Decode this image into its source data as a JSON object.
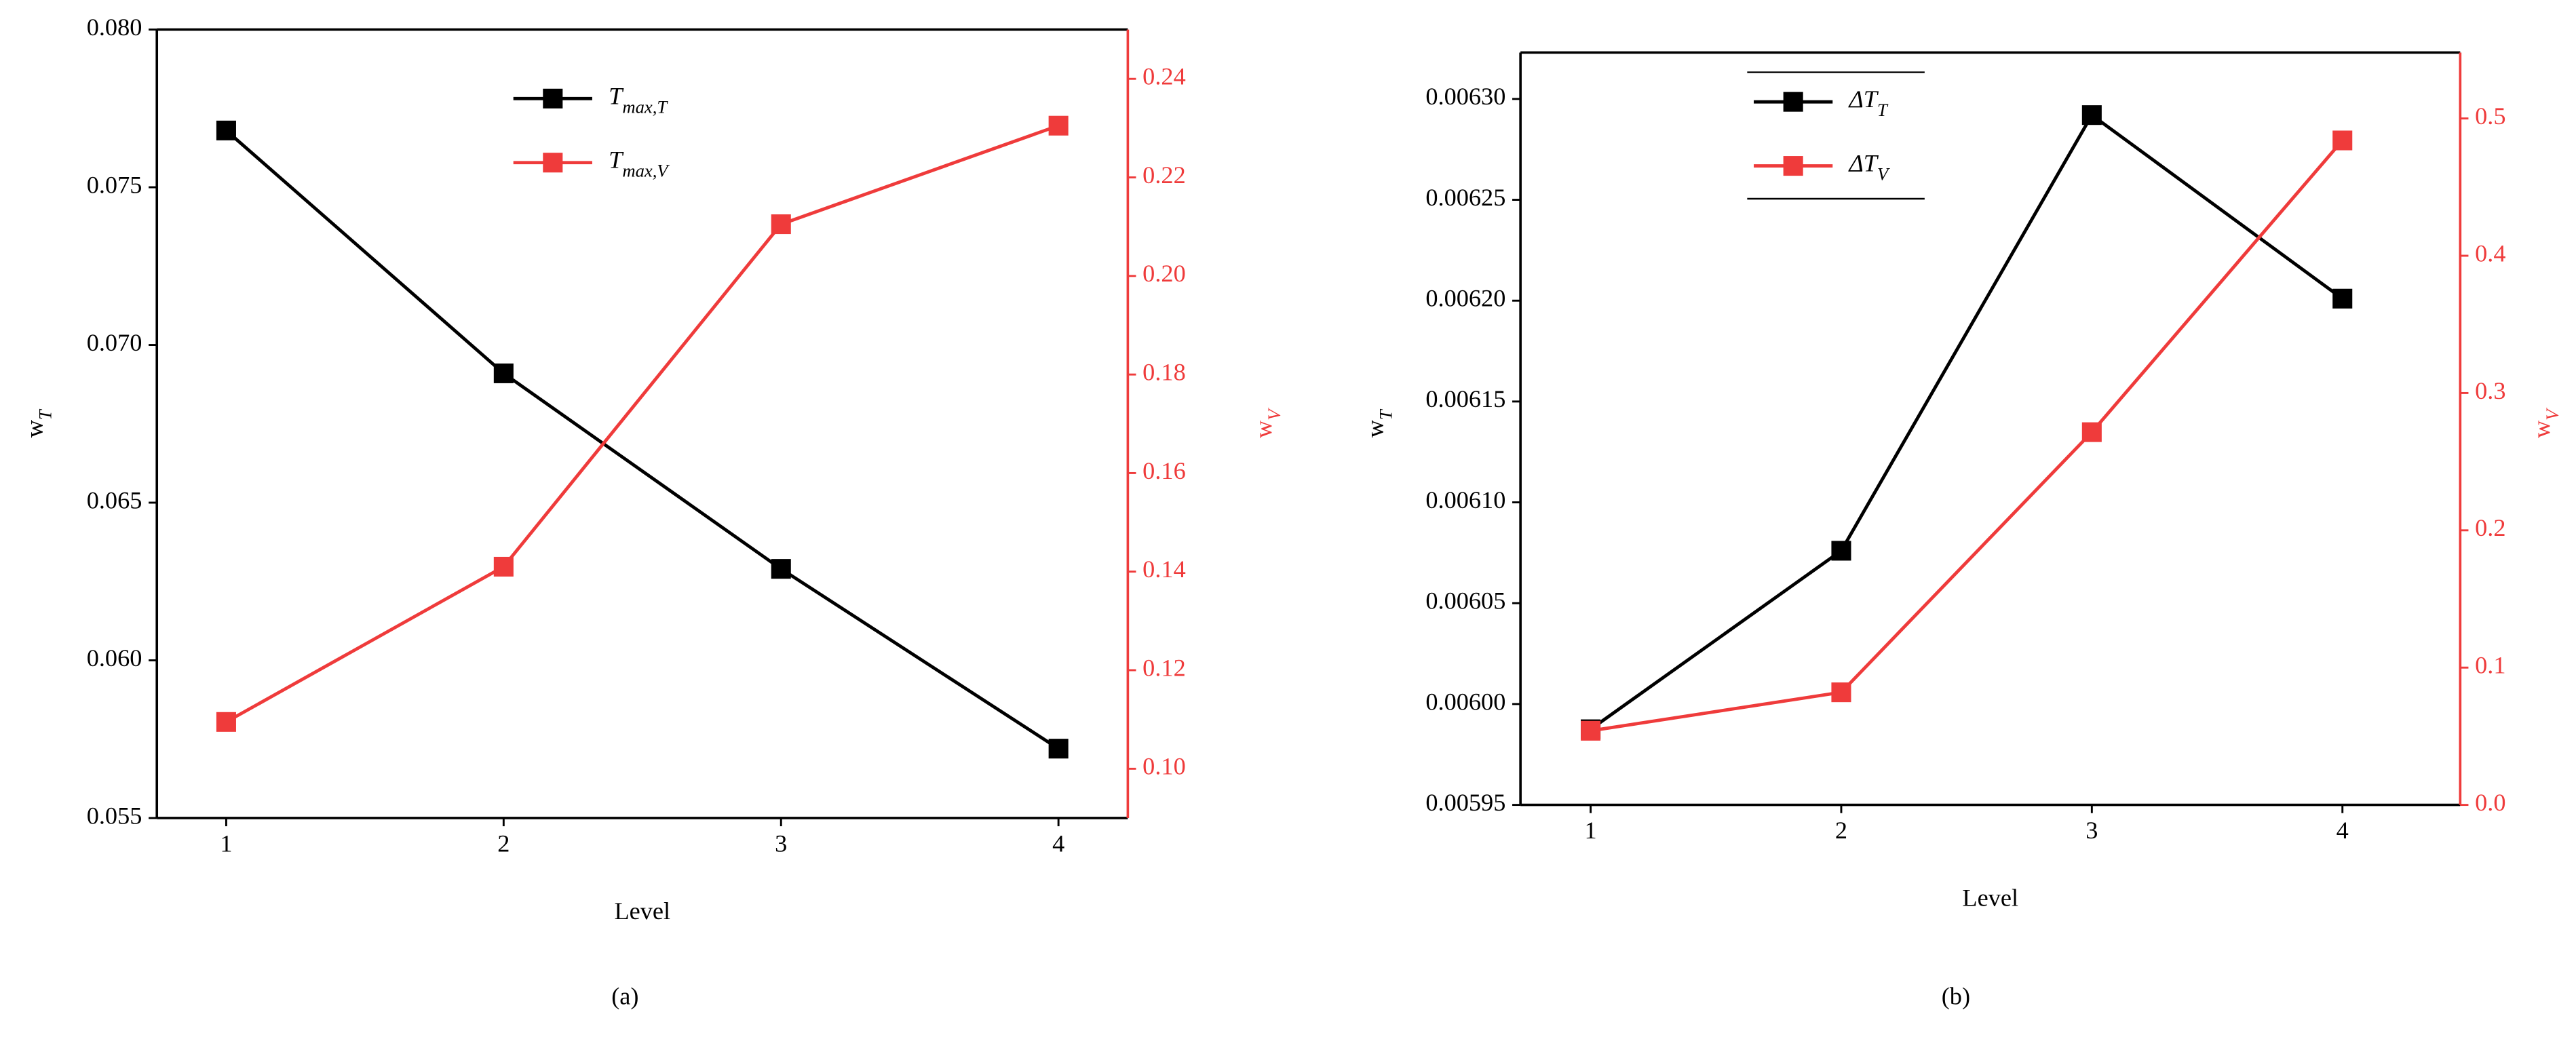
{
  "chart_data": [
    {
      "type": "line",
      "caption": "(a)",
      "xlabel": "Level",
      "ylabel": {
        "text": "w",
        "sub": "T"
      },
      "y2label": {
        "text": "w",
        "sub": "V"
      },
      "x": [
        1,
        2,
        3,
        4
      ],
      "xlim": [
        0.75,
        4.25
      ],
      "xticks": [
        1,
        2,
        3,
        4
      ],
      "ylim": [
        0.055,
        0.08
      ],
      "yticks": [
        0.055,
        {
          "value": 0.06,
          "label": "0.060"
        },
        0.065,
        {
          "value": 0.07,
          "label": "0.070"
        },
        0.075,
        {
          "value": 0.08,
          "label": "0.080"
        }
      ],
      "y2lim": [
        0.09,
        0.25
      ],
      "y2ticks": [
        {
          "value": 0.1,
          "label": "0.10"
        },
        0.12,
        0.14,
        0.16,
        0.18,
        {
          "value": 0.2,
          "label": "0.20"
        },
        0.22,
        0.24
      ],
      "series": [
        {
          "name": {
            "text": "T",
            "sub": "max,T"
          },
          "color": "#000000",
          "values": [
            0.0768,
            0.0691,
            0.0629,
            0.0572
          ]
        },
        {
          "name": {
            "text": "T",
            "sub": "max,V"
          },
          "color": "#ef3b3b",
          "axis": "y2",
          "values": [
            0.1095,
            0.141,
            0.2105,
            0.2305
          ]
        }
      ]
    },
    {
      "type": "line",
      "caption": "(b)",
      "xlabel": "Level",
      "ylabel": {
        "text": "w",
        "sub": "T"
      },
      "y2label": {
        "text": "w",
        "sub": "V"
      },
      "x": [
        1,
        2,
        3,
        4
      ],
      "xlim": [
        0.72,
        4.47
      ],
      "xticks": [
        1,
        2,
        3,
        4
      ],
      "ylim": [
        0.00595,
        0.006323
      ],
      "yticks": [
        0.00595,
        {
          "value": 0.006,
          "label": "0.00600"
        },
        0.00605,
        {
          "value": 0.0061,
          "label": "0.00610"
        },
        0.00615,
        {
          "value": 0.0062,
          "label": "0.00620"
        },
        0.00625,
        {
          "value": 0.0063,
          "label": "0.00630"
        }
      ],
      "y2lim": [
        0,
        0.548
      ],
      "y2ticks": [
        {
          "value": 0,
          "label": "0.0"
        },
        0.1,
        0.2,
        0.3,
        0.4,
        0.5
      ],
      "series": [
        {
          "name": {
            "text": "ΔT",
            "sub": "T"
          },
          "color": "#000000",
          "values": [
            0.0059875,
            0.006076,
            0.006292,
            0.006201
          ]
        },
        {
          "name": {
            "text": "ΔT",
            "sub": "V"
          },
          "color": "#ef3b3b",
          "axis": "y2",
          "values": [
            0.054,
            0.082,
            0.2715,
            0.484
          ]
        }
      ]
    }
  ]
}
